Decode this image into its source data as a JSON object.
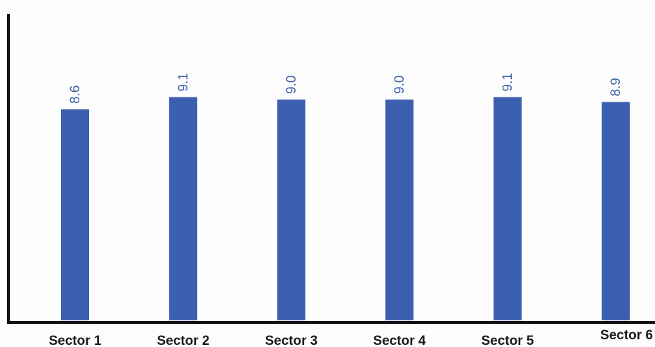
{
  "chart_data": {
    "type": "bar",
    "categories": [
      "Sector 1",
      "Sector 2",
      "Sector 3",
      "Sector 4",
      "Sector 5",
      "Sector 6"
    ],
    "values": [
      8.6,
      9.1,
      9.0,
      9.0,
      9.1,
      8.9
    ],
    "data_labels": [
      "8.6",
      "9.1",
      "9.0",
      "9.0",
      "9.1",
      "8.9"
    ],
    "title": "",
    "xlabel": "",
    "ylabel": "",
    "ylim": [
      0,
      10
    ],
    "grid": false,
    "legend": "none",
    "bar_color": "#3d5fb0",
    "axis_color": "#111111",
    "label_color": "#3a5fa8"
  }
}
